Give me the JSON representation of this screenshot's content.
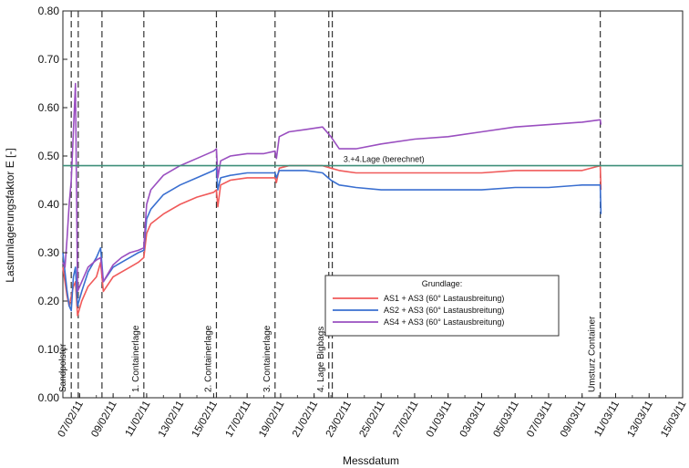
{
  "chart_data": {
    "type": "line",
    "title": "",
    "xlabel": "Messdatum",
    "ylabel": "Lastumlagerungsfaktor E [-]",
    "ylim": [
      0,
      0.8
    ],
    "y_ticks": [
      "0.00",
      "0.10",
      "0.20",
      "0.30",
      "0.40",
      "0.50",
      "0.60",
      "0.70",
      "0.80"
    ],
    "xlim": [
      "2011-02-06",
      "2011-03-15"
    ],
    "x_ticks": [
      {
        "date": "2011-02-07",
        "label": "07/02/11"
      },
      {
        "date": "2011-02-09",
        "label": "09/02/11"
      },
      {
        "date": "2011-02-11",
        "label": "11/02/11"
      },
      {
        "date": "2011-02-13",
        "label": "13/02/11"
      },
      {
        "date": "2011-02-15",
        "label": "15/02/11"
      },
      {
        "date": "2011-02-17",
        "label": "17/02/11"
      },
      {
        "date": "2011-02-19",
        "label": "19/02/11"
      },
      {
        "date": "2011-02-21",
        "label": "21/02/11"
      },
      {
        "date": "2011-02-23",
        "label": "23/02/11"
      },
      {
        "date": "2011-02-25",
        "label": "25/02/11"
      },
      {
        "date": "2011-02-27",
        "label": "27/02/11"
      },
      {
        "date": "2011-03-01",
        "label": "01/03/11"
      },
      {
        "date": "2011-03-03",
        "label": "03/03/11"
      },
      {
        "date": "2011-03-05",
        "label": "05/03/11"
      },
      {
        "date": "2011-03-07",
        "label": "07/03/11"
      },
      {
        "date": "2011-03-09",
        "label": "09/03/11"
      },
      {
        "date": "2011-03-11",
        "label": "11/03/11"
      },
      {
        "date": "2011-03-13",
        "label": "13/03/11"
      },
      {
        "date": "2011-03-15",
        "label": "15/03/11"
      }
    ],
    "events": [
      {
        "date": "2011-02-06 12:00",
        "label": "Sandpolster"
      },
      {
        "date": "2011-02-06 22:00",
        "label": ""
      },
      {
        "date": "2011-02-08 08:00",
        "label": ""
      },
      {
        "date": "2011-02-10 20:00",
        "label": "1. Containerlage"
      },
      {
        "date": "2011-02-15 04:00",
        "label": "2. Containerlage"
      },
      {
        "date": "2011-02-18 16:00",
        "label": "3. Containerlage"
      },
      {
        "date": "2011-02-21 21:00",
        "label": "4. Lage Bigbags"
      },
      {
        "date": "2011-02-22 02:00",
        "label": ""
      },
      {
        "date": "2011-03-10 02:00",
        "label": "Umsturz Container"
      }
    ],
    "reference_line": {
      "value": 0.48,
      "label": "3.+4.Lage (berechnet)",
      "color": "#3f8f7a"
    },
    "legend": {
      "title": "Grundlage:",
      "position": "center-right",
      "entries": [
        "AS1 + AS3 (60° Lastausbreitung)",
        "AS2 + AS3 (60° Lastausbreitung)",
        "AS4 + AS3 (60° Lastausbreitung)"
      ]
    },
    "grid": false,
    "series": [
      {
        "name": "AS1 + AS3 (60° Lastausbreitung)",
        "color": "#f05a5a",
        "points": [
          [
            "2011-02-06 00:00",
            0.27
          ],
          [
            "2011-02-06 03:00",
            0.24
          ],
          [
            "2011-02-06 06:00",
            0.21
          ],
          [
            "2011-02-06 09:00",
            0.19
          ],
          [
            "2011-02-06 12:00",
            0.21
          ],
          [
            "2011-02-06 15:00",
            0.23
          ],
          [
            "2011-02-06 18:00",
            0.24
          ],
          [
            "2011-02-06 21:00",
            0.17
          ],
          [
            "2011-02-07 03:00",
            0.2
          ],
          [
            "2011-02-07 12:00",
            0.23
          ],
          [
            "2011-02-08 00:00",
            0.25
          ],
          [
            "2011-02-08 06:00",
            0.28
          ],
          [
            "2011-02-08 10:00",
            0.22
          ],
          [
            "2011-02-09 00:00",
            0.25
          ],
          [
            "2011-02-09 12:00",
            0.26
          ],
          [
            "2011-02-10 00:00",
            0.27
          ],
          [
            "2011-02-10 12:00",
            0.28
          ],
          [
            "2011-02-10 20:00",
            0.29
          ],
          [
            "2011-02-11 00:00",
            0.34
          ],
          [
            "2011-02-11 06:00",
            0.36
          ],
          [
            "2011-02-12 00:00",
            0.38
          ],
          [
            "2011-02-13 00:00",
            0.4
          ],
          [
            "2011-02-14 00:00",
            0.415
          ],
          [
            "2011-02-15 00:00",
            0.425
          ],
          [
            "2011-02-15 04:00",
            0.43
          ],
          [
            "2011-02-15 06:00",
            0.395
          ],
          [
            "2011-02-15 10:00",
            0.44
          ],
          [
            "2011-02-16 00:00",
            0.45
          ],
          [
            "2011-02-17 00:00",
            0.455
          ],
          [
            "2011-02-18 00:00",
            0.455
          ],
          [
            "2011-02-18 16:00",
            0.455
          ],
          [
            "2011-02-18 18:00",
            0.445
          ],
          [
            "2011-02-18 22:00",
            0.475
          ],
          [
            "2011-02-19 12:00",
            0.48
          ],
          [
            "2011-02-20 12:00",
            0.48
          ],
          [
            "2011-02-21 12:00",
            0.48
          ],
          [
            "2011-02-22 00:00",
            0.475
          ],
          [
            "2011-02-22 12:00",
            0.47
          ],
          [
            "2011-02-23 12:00",
            0.465
          ],
          [
            "2011-02-25 00:00",
            0.465
          ],
          [
            "2011-02-27 00:00",
            0.465
          ],
          [
            "2011-03-01 00:00",
            0.465
          ],
          [
            "2011-03-03 00:00",
            0.465
          ],
          [
            "2011-03-05 00:00",
            0.47
          ],
          [
            "2011-03-07 00:00",
            0.47
          ],
          [
            "2011-03-09 00:00",
            0.47
          ],
          [
            "2011-03-10 02:00",
            0.48
          ],
          [
            "2011-03-10 03:00",
            0.43
          ]
        ]
      },
      {
        "name": "AS2 + AS3 (60° Lastausbreitung)",
        "color": "#3a6fd0",
        "points": [
          [
            "2011-02-06 00:00",
            0.3
          ],
          [
            "2011-02-06 03:00",
            0.26
          ],
          [
            "2011-02-06 06:00",
            0.22
          ],
          [
            "2011-02-06 09:00",
            0.19
          ],
          [
            "2011-02-06 12:00",
            0.18
          ],
          [
            "2011-02-06 15:00",
            0.25
          ],
          [
            "2011-02-06 18:00",
            0.27
          ],
          [
            "2011-02-06 21:00",
            0.19
          ],
          [
            "2011-02-07 03:00",
            0.22
          ],
          [
            "2011-02-07 12:00",
            0.26
          ],
          [
            "2011-02-08 00:00",
            0.29
          ],
          [
            "2011-02-08 06:00",
            0.31
          ],
          [
            "2011-02-08 10:00",
            0.24
          ],
          [
            "2011-02-09 00:00",
            0.27
          ],
          [
            "2011-02-09 12:00",
            0.28
          ],
          [
            "2011-02-10 00:00",
            0.29
          ],
          [
            "2011-02-10 12:00",
            0.3
          ],
          [
            "2011-02-10 20:00",
            0.305
          ],
          [
            "2011-02-11 00:00",
            0.37
          ],
          [
            "2011-02-11 06:00",
            0.39
          ],
          [
            "2011-02-12 00:00",
            0.42
          ],
          [
            "2011-02-13 00:00",
            0.44
          ],
          [
            "2011-02-14 00:00",
            0.455
          ],
          [
            "2011-02-15 00:00",
            0.47
          ],
          [
            "2011-02-15 04:00",
            0.475
          ],
          [
            "2011-02-15 06:00",
            0.43
          ],
          [
            "2011-02-15 10:00",
            0.455
          ],
          [
            "2011-02-16 00:00",
            0.46
          ],
          [
            "2011-02-17 00:00",
            0.465
          ],
          [
            "2011-02-18 00:00",
            0.465
          ],
          [
            "2011-02-18 16:00",
            0.465
          ],
          [
            "2011-02-18 18:00",
            0.455
          ],
          [
            "2011-02-18 22:00",
            0.47
          ],
          [
            "2011-02-19 12:00",
            0.47
          ],
          [
            "2011-02-20 12:00",
            0.47
          ],
          [
            "2011-02-21 12:00",
            0.465
          ],
          [
            "2011-02-22 00:00",
            0.45
          ],
          [
            "2011-02-22 12:00",
            0.44
          ],
          [
            "2011-02-23 12:00",
            0.435
          ],
          [
            "2011-02-25 00:00",
            0.43
          ],
          [
            "2011-02-27 00:00",
            0.43
          ],
          [
            "2011-03-01 00:00",
            0.43
          ],
          [
            "2011-03-03 00:00",
            0.43
          ],
          [
            "2011-03-05 00:00",
            0.435
          ],
          [
            "2011-03-07 00:00",
            0.435
          ],
          [
            "2011-03-09 00:00",
            0.44
          ],
          [
            "2011-03-10 02:00",
            0.44
          ],
          [
            "2011-03-10 03:00",
            0.38
          ]
        ]
      },
      {
        "name": "AS4 + AS3 (60° Lastausbreitung)",
        "color": "#9a4fc0",
        "points": [
          [
            "2011-02-06 00:00",
            0.28
          ],
          [
            "2011-02-06 03:00",
            0.27
          ],
          [
            "2011-02-06 06:00",
            0.33
          ],
          [
            "2011-02-06 09:00",
            0.4
          ],
          [
            "2011-02-06 12:00",
            0.45
          ],
          [
            "2011-02-06 15:00",
            0.55
          ],
          [
            "2011-02-06 18:00",
            0.65
          ],
          [
            "2011-02-06 21:00",
            0.22
          ],
          [
            "2011-02-07 03:00",
            0.24
          ],
          [
            "2011-02-07 12:00",
            0.27
          ],
          [
            "2011-02-08 00:00",
            0.285
          ],
          [
            "2011-02-08 06:00",
            0.29
          ],
          [
            "2011-02-08 10:00",
            0.24
          ],
          [
            "2011-02-09 00:00",
            0.275
          ],
          [
            "2011-02-09 12:00",
            0.29
          ],
          [
            "2011-02-10 00:00",
            0.3
          ],
          [
            "2011-02-10 12:00",
            0.305
          ],
          [
            "2011-02-10 20:00",
            0.31
          ],
          [
            "2011-02-11 00:00",
            0.4
          ],
          [
            "2011-02-11 06:00",
            0.43
          ],
          [
            "2011-02-12 00:00",
            0.46
          ],
          [
            "2011-02-13 00:00",
            0.48
          ],
          [
            "2011-02-14 00:00",
            0.495
          ],
          [
            "2011-02-15 00:00",
            0.51
          ],
          [
            "2011-02-15 04:00",
            0.515
          ],
          [
            "2011-02-15 06:00",
            0.455
          ],
          [
            "2011-02-15 10:00",
            0.49
          ],
          [
            "2011-02-16 00:00",
            0.5
          ],
          [
            "2011-02-17 00:00",
            0.505
          ],
          [
            "2011-02-18 00:00",
            0.505
          ],
          [
            "2011-02-18 16:00",
            0.51
          ],
          [
            "2011-02-18 18:00",
            0.495
          ],
          [
            "2011-02-18 22:00",
            0.54
          ],
          [
            "2011-02-19 12:00",
            0.55
          ],
          [
            "2011-02-20 12:00",
            0.555
          ],
          [
            "2011-02-21 12:00",
            0.56
          ],
          [
            "2011-02-22 00:00",
            0.54
          ],
          [
            "2011-02-22 12:00",
            0.515
          ],
          [
            "2011-02-23 12:00",
            0.515
          ],
          [
            "2011-02-25 00:00",
            0.525
          ],
          [
            "2011-02-27 00:00",
            0.535
          ],
          [
            "2011-03-01 00:00",
            0.54
          ],
          [
            "2011-03-03 00:00",
            0.55
          ],
          [
            "2011-03-05 00:00",
            0.56
          ],
          [
            "2011-03-07 00:00",
            0.565
          ],
          [
            "2011-03-09 00:00",
            0.57
          ],
          [
            "2011-03-10 02:00",
            0.575
          ],
          [
            "2011-03-10 03:00",
            0.565
          ]
        ]
      }
    ]
  }
}
